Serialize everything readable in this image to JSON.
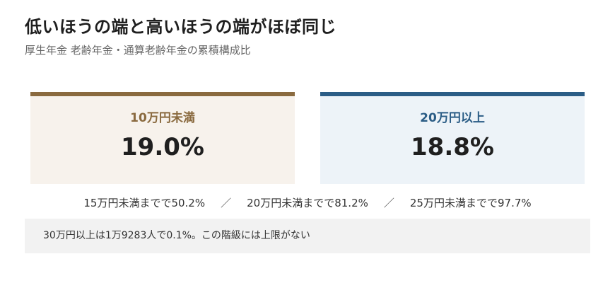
{
  "title": "低いほうの端と高いほうの端がほぼ同じ",
  "subtitle": "厚生年金 老齢年金・通算老齢年金の累積構成比",
  "colors": {
    "low_accent": "#8a6a3f",
    "high_accent": "#2b5d86",
    "low_bg": "#f7f2ec",
    "high_bg": "#edf3f8"
  },
  "chart_data": {
    "type": "table",
    "cards": [
      {
        "label": "10万円未満",
        "value": "19.0%"
      },
      {
        "label": "20万円以上",
        "value": "18.8%"
      }
    ],
    "cumulative": [
      {
        "label": "15万円未満までで50.2%"
      },
      {
        "label": "20万円未満までで81.2%"
      },
      {
        "label": "25万円未満までで97.7%"
      }
    ],
    "separator": "／",
    "note": "30万円以上は1万9283人で0.1%。この階級には上限がない"
  }
}
